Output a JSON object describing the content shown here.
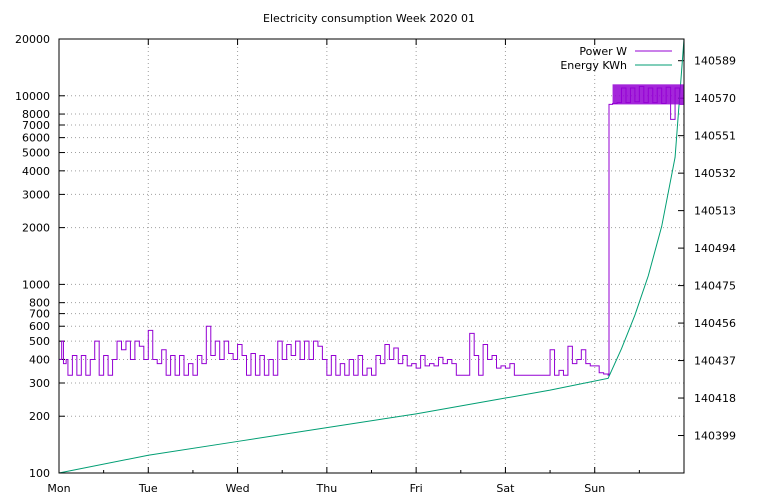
{
  "chart_data": {
    "type": "line",
    "title": "Electricity consumption Week 2020 01",
    "x_ticks": [
      "Mon",
      "Tue",
      "Wed",
      "Thu",
      "Fri",
      "Sat",
      "Sun"
    ],
    "y_left": {
      "scale": "log",
      "range": [
        100,
        20000
      ],
      "ticks": [
        100,
        200,
        300,
        400,
        500,
        600,
        700,
        800,
        1000,
        2000,
        3000,
        4000,
        5000,
        6000,
        7000,
        8000,
        10000,
        20000
      ],
      "tick_labels": [
        "100",
        "200",
        "300",
        "400",
        "500",
        "600",
        "700",
        "800",
        "1000",
        "2000",
        "3000",
        "4000",
        "5000",
        "6000",
        "7000",
        "8000",
        "10000",
        "20000"
      ]
    },
    "y_right": {
      "scale": "linear",
      "range": [
        140380,
        140600
      ],
      "ticks": [
        140399,
        140418,
        140437,
        140456,
        140475,
        140494,
        140513,
        140532,
        140551,
        140570,
        140589
      ],
      "tick_labels": [
        "140399",
        "140418",
        "140437",
        "140456",
        "140475",
        "140494",
        "140513",
        "140532",
        "140551",
        "140570",
        "140589"
      ]
    },
    "grid": true,
    "legend_position": "top-right",
    "series": [
      {
        "name": "Power W",
        "color": "#9400d3",
        "axis": "left",
        "points": [
          [
            0.0,
            400
          ],
          [
            0.03,
            500
          ],
          [
            0.05,
            380
          ],
          [
            0.08,
            400
          ],
          [
            0.1,
            330
          ],
          [
            0.15,
            420
          ],
          [
            0.2,
            330
          ],
          [
            0.25,
            420
          ],
          [
            0.3,
            330
          ],
          [
            0.35,
            400
          ],
          [
            0.4,
            500
          ],
          [
            0.45,
            330
          ],
          [
            0.5,
            420
          ],
          [
            0.55,
            330
          ],
          [
            0.6,
            400
          ],
          [
            0.65,
            500
          ],
          [
            0.7,
            450
          ],
          [
            0.75,
            500
          ],
          [
            0.8,
            400
          ],
          [
            0.85,
            500
          ],
          [
            0.9,
            470
          ],
          [
            0.95,
            400
          ],
          [
            1.0,
            570
          ],
          [
            1.05,
            400
          ],
          [
            1.1,
            380
          ],
          [
            1.15,
            450
          ],
          [
            1.2,
            330
          ],
          [
            1.25,
            420
          ],
          [
            1.3,
            330
          ],
          [
            1.35,
            420
          ],
          [
            1.4,
            330
          ],
          [
            1.45,
            380
          ],
          [
            1.5,
            330
          ],
          [
            1.55,
            420
          ],
          [
            1.6,
            380
          ],
          [
            1.65,
            600
          ],
          [
            1.7,
            420
          ],
          [
            1.75,
            500
          ],
          [
            1.8,
            400
          ],
          [
            1.85,
            500
          ],
          [
            1.9,
            430
          ],
          [
            1.95,
            400
          ],
          [
            2.0,
            480
          ],
          [
            2.05,
            420
          ],
          [
            2.1,
            330
          ],
          [
            2.15,
            430
          ],
          [
            2.2,
            330
          ],
          [
            2.25,
            420
          ],
          [
            2.3,
            330
          ],
          [
            2.35,
            400
          ],
          [
            2.4,
            330
          ],
          [
            2.45,
            500
          ],
          [
            2.5,
            400
          ],
          [
            2.55,
            480
          ],
          [
            2.6,
            420
          ],
          [
            2.65,
            500
          ],
          [
            2.7,
            400
          ],
          [
            2.75,
            500
          ],
          [
            2.8,
            400
          ],
          [
            2.85,
            500
          ],
          [
            2.9,
            470
          ],
          [
            2.95,
            400
          ],
          [
            3.0,
            330
          ],
          [
            3.05,
            420
          ],
          [
            3.1,
            330
          ],
          [
            3.15,
            380
          ],
          [
            3.2,
            330
          ],
          [
            3.25,
            400
          ],
          [
            3.3,
            330
          ],
          [
            3.35,
            420
          ],
          [
            3.4,
            330
          ],
          [
            3.45,
            360
          ],
          [
            3.5,
            330
          ],
          [
            3.55,
            420
          ],
          [
            3.6,
            380
          ],
          [
            3.65,
            480
          ],
          [
            3.7,
            400
          ],
          [
            3.75,
            460
          ],
          [
            3.8,
            380
          ],
          [
            3.85,
            420
          ],
          [
            3.9,
            370
          ],
          [
            3.95,
            380
          ],
          [
            4.0,
            360
          ],
          [
            4.05,
            420
          ],
          [
            4.1,
            370
          ],
          [
            4.15,
            380
          ],
          [
            4.2,
            370
          ],
          [
            4.25,
            410
          ],
          [
            4.3,
            380
          ],
          [
            4.35,
            400
          ],
          [
            4.4,
            380
          ],
          [
            4.45,
            330
          ],
          [
            4.5,
            330
          ],
          [
            4.55,
            330
          ],
          [
            4.6,
            550
          ],
          [
            4.65,
            420
          ],
          [
            4.7,
            330
          ],
          [
            4.75,
            480
          ],
          [
            4.8,
            400
          ],
          [
            4.85,
            420
          ],
          [
            4.9,
            360
          ],
          [
            4.95,
            370
          ],
          [
            5.0,
            360
          ],
          [
            5.05,
            380
          ],
          [
            5.1,
            330
          ],
          [
            5.15,
            330
          ],
          [
            5.2,
            330
          ],
          [
            5.25,
            330
          ],
          [
            5.3,
            330
          ],
          [
            5.35,
            330
          ],
          [
            5.4,
            330
          ],
          [
            5.45,
            330
          ],
          [
            5.5,
            450
          ],
          [
            5.55,
            330
          ],
          [
            5.6,
            350
          ],
          [
            5.65,
            330
          ],
          [
            5.7,
            470
          ],
          [
            5.75,
            380
          ],
          [
            5.8,
            400
          ],
          [
            5.85,
            450
          ],
          [
            5.9,
            380
          ],
          [
            5.95,
            370
          ],
          [
            6.0,
            370
          ],
          [
            6.05,
            340
          ],
          [
            6.1,
            335
          ],
          [
            6.15,
            330
          ],
          [
            6.16,
            9000
          ],
          [
            6.2,
            9100
          ],
          [
            6.25,
            9200
          ],
          [
            6.3,
            11000
          ],
          [
            6.35,
            9200
          ],
          [
            6.4,
            11000
          ],
          [
            6.45,
            9300
          ],
          [
            6.5,
            11200
          ],
          [
            6.55,
            9200
          ],
          [
            6.6,
            11000
          ],
          [
            6.65,
            9200
          ],
          [
            6.7,
            11000
          ],
          [
            6.75,
            9100
          ],
          [
            6.8,
            11100
          ],
          [
            6.85,
            7500
          ],
          [
            6.9,
            11000
          ],
          [
            6.95,
            9000
          ],
          [
            7.0,
            11000
          ]
        ]
      },
      {
        "name": "Energy KWh",
        "color": "#009e73",
        "axis": "right",
        "points": [
          [
            0.0,
            140380
          ],
          [
            1.0,
            140389
          ],
          [
            2.0,
            140396
          ],
          [
            3.0,
            140403
          ],
          [
            4.0,
            140410
          ],
          [
            5.0,
            140418
          ],
          [
            5.5,
            140422
          ],
          [
            6.15,
            140428
          ],
          [
            6.3,
            140443
          ],
          [
            6.45,
            140460
          ],
          [
            6.6,
            140480
          ],
          [
            6.75,
            140505
          ],
          [
            6.9,
            140540
          ],
          [
            7.0,
            140600
          ]
        ]
      }
    ]
  }
}
